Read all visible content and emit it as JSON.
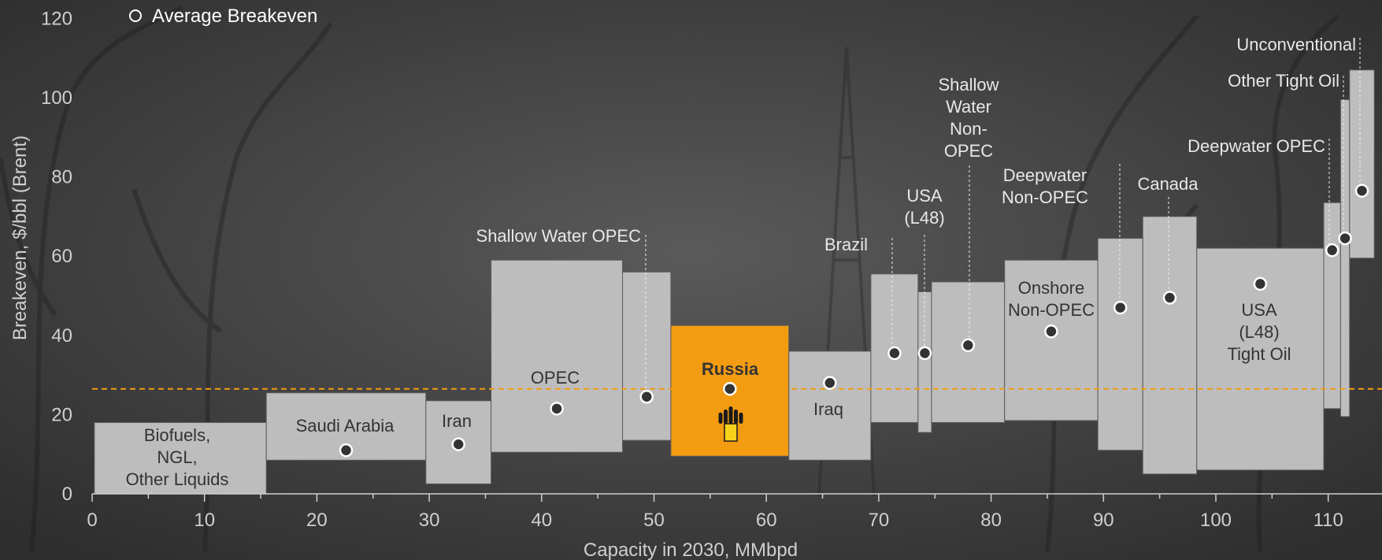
{
  "chart_data": {
    "type": "bar",
    "subtype": "variable-width cost curve",
    "xlabel": "Capacity in 2030, MMbpd",
    "ylabel": "Breakeven, $/bbl (Brent)",
    "xlim": [
      0,
      115
    ],
    "ylim": [
      0,
      120
    ],
    "x_ticks": [
      0,
      10,
      20,
      30,
      40,
      50,
      60,
      70,
      80,
      90,
      100,
      110
    ],
    "y_ticks": [
      0,
      20,
      40,
      60,
      80,
      100,
      120
    ],
    "legend": {
      "label": "Average Breakeven",
      "position": "top-left"
    },
    "reference_line": {
      "value": 26.5,
      "color": "#f39c12",
      "style": "dashed"
    },
    "colors": {
      "box": "#bdbdbd",
      "highlight": "#f39c12",
      "background": "#3a3a3a",
      "text": "#e0e0e0"
    },
    "segments": [
      {
        "label": "Biofuels,\nNGL,\nOther Liquids",
        "x0": 0.2,
        "x1": 15.5,
        "low": 0,
        "high": 18,
        "avg": null
      },
      {
        "label": "Saudi Arabia",
        "x0": 15.5,
        "x1": 29.7,
        "low": 8.5,
        "high": 25.5,
        "avg": 11
      },
      {
        "label": "Iran",
        "x0": 29.7,
        "x1": 35.5,
        "low": 2.5,
        "high": 23.5,
        "avg": 12.5
      },
      {
        "label": "OPEC",
        "x0": 35.5,
        "x1": 47.2,
        "low": 10.5,
        "high": 59,
        "avg": 21.5
      },
      {
        "label": "Shallow Water OPEC",
        "x0": 47.2,
        "x1": 51.5,
        "low": 13.5,
        "high": 56,
        "avg": 24.5
      },
      {
        "label": "Russia",
        "x0": 51.5,
        "x1": 62,
        "low": 9.5,
        "high": 42.5,
        "avg": 26.5,
        "highlight": true
      },
      {
        "label": "Iraq",
        "x0": 62,
        "x1": 69.3,
        "low": 8.5,
        "high": 36,
        "avg": 28
      },
      {
        "label": "Brazil",
        "x0": 69.3,
        "x1": 73.5,
        "low": 18,
        "high": 55.5,
        "avg": 35.5
      },
      {
        "label": "USA\n(L48)",
        "x0": 73.5,
        "x1": 74.7,
        "low": 15.5,
        "high": 51,
        "avg": 35.5
      },
      {
        "label": "Shallow\nWater\nNon-\nOPEC",
        "x0": 74.7,
        "x1": 81.2,
        "low": 18,
        "high": 53.5,
        "avg": 37.5
      },
      {
        "label": "Onshore\nNon-OPEC",
        "x0": 81.2,
        "x1": 89.5,
        "low": 18.5,
        "high": 59,
        "avg": 41
      },
      {
        "label": "Deepwater\nNon-OPEC",
        "x0": 89.5,
        "x1": 93.5,
        "low": 11,
        "high": 64.5,
        "avg": 47
      },
      {
        "label": "Canada",
        "x0": 93.5,
        "x1": 98.3,
        "low": 5,
        "high": 70,
        "avg": 49.5
      },
      {
        "label": "USA\n(L48)\nTight Oil",
        "x0": 98.3,
        "x1": 109.6,
        "low": 6,
        "high": 62,
        "avg": 53
      },
      {
        "label": "Deepwater OPEC",
        "x0": 109.6,
        "x1": 111.1,
        "low": 21.5,
        "high": 73.5,
        "avg": 61.5
      },
      {
        "label": "Other Tight Oil",
        "x0": 111.1,
        "x1": 111.9,
        "low": 19.5,
        "high": 99.5,
        "avg": 64.5
      },
      {
        "label": "Unconventional",
        "x0": 111.9,
        "x1": 114.1,
        "low": 59.5,
        "high": 107,
        "avg": 76.5
      }
    ]
  }
}
